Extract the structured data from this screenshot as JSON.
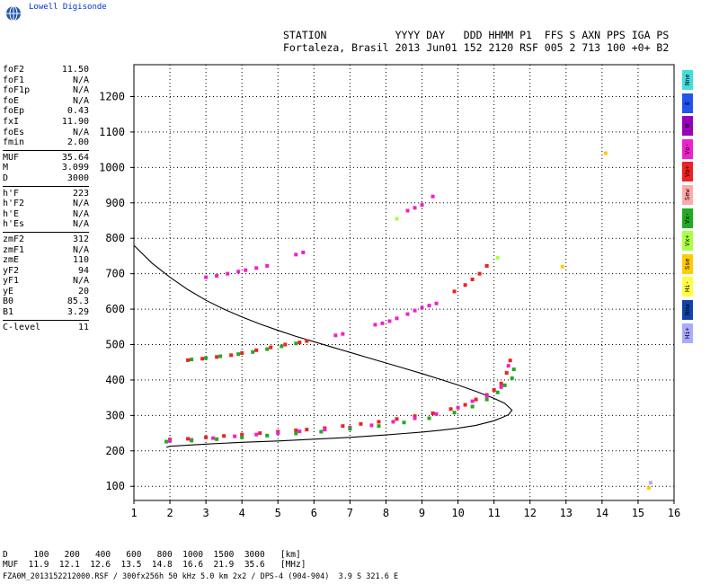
{
  "header": {
    "logo_text": "Lowell Digisonde",
    "line1": "STATION           YYYY DAY   DDD HHMM P1  FFS S AXN PPS IGA PS",
    "line2": "Fortaleza, Brasil 2013 Jun01 152 2120 RSF 005 2 713 100 +0+ B2"
  },
  "params": {
    "group1": [
      {
        "label": "foF2",
        "value": "11.50"
      },
      {
        "label": "foF1",
        "value": "N/A"
      },
      {
        "label": "foF1p",
        "value": "N/A"
      },
      {
        "label": "foE",
        "value": "N/A"
      },
      {
        "label": "foEp",
        "value": "0.43"
      },
      {
        "label": "fxI",
        "value": "11.90"
      },
      {
        "label": "foEs",
        "value": "N/A"
      },
      {
        "label": "fmin",
        "value": "2.00"
      }
    ],
    "group2": [
      {
        "label": "MUF",
        "value": "35.64"
      },
      {
        "label": "M",
        "value": "3.099"
      },
      {
        "label": "D",
        "value": "3000"
      }
    ],
    "group3": [
      {
        "label": "h'F",
        "value": "223"
      },
      {
        "label": "h'F2",
        "value": "N/A"
      },
      {
        "label": "h'E",
        "value": "N/A"
      },
      {
        "label": "h'Es",
        "value": "N/A"
      }
    ],
    "group4": [
      {
        "label": "zmF2",
        "value": "312"
      },
      {
        "label": "zmF1",
        "value": "N/A"
      },
      {
        "label": "zmE",
        "value": "110"
      },
      {
        "label": "yF2",
        "value": "94"
      },
      {
        "label": "yF1",
        "value": "N/A"
      },
      {
        "label": "yE",
        "value": "20"
      },
      {
        "label": "B0",
        "value": "85.3"
      },
      {
        "label": "B1",
        "value": "3.29"
      }
    ],
    "group5": [
      {
        "label": "C-level",
        "value": "11"
      }
    ]
  },
  "legend": [
    {
      "label": "Nne",
      "color": "#44dddd"
    },
    {
      "label": "E",
      "color": "#2255ee"
    },
    {
      "label": "W",
      "color": "#9900bb"
    },
    {
      "label": "Vo-",
      "color": "#ee22cc"
    },
    {
      "label": "Vo+",
      "color": "#ee2222"
    },
    {
      "label": "Sew",
      "color": "#ffaaaa"
    },
    {
      "label": "Vx-",
      "color": "#22aa22"
    },
    {
      "label": "Vx+",
      "color": "#aaff44"
    },
    {
      "label": "Sse",
      "color": "#ffcc00"
    },
    {
      "label": "Hi-",
      "color": "#ffff44"
    },
    {
      "label": "Nnw",
      "color": "#1144aa"
    },
    {
      "label": "Hi+",
      "color": "#aaaaff"
    }
  ],
  "bottom": {
    "d_line": "D     100   200   400   600   800  1000  1500  3000   [km]",
    "muf_line": "MUF  11.9  12.1  12.6  13.5  14.8  16.6  21.9  35.6   [MHz]",
    "footer": "FZA0M_2013152212000.RSF / 300fx256h 50 kHz 5.0 km 2x2 / DPS-4 (904-904)  3.9 S 321.6 E"
  },
  "chart_data": {
    "type": "scatter",
    "xlim": [
      1,
      16
    ],
    "ylim": [
      60,
      1290
    ],
    "x_ticks": [
      1,
      2,
      3,
      4,
      5,
      6,
      7,
      8,
      9,
      10,
      11,
      12,
      13,
      14,
      15,
      16
    ],
    "y_ticks": [
      100,
      200,
      300,
      400,
      500,
      600,
      700,
      800,
      900,
      1000,
      1100,
      1200
    ],
    "grid": true,
    "profile": {
      "x": [
        1.0,
        1.5,
        2.0,
        2.5,
        3.0,
        3.5,
        4.0,
        4.5,
        5.0,
        5.5,
        6.0,
        6.5,
        7.0,
        7.5,
        8.0,
        8.5,
        9.0,
        9.5,
        10.0,
        10.5,
        11.0,
        11.3,
        11.5,
        11.4,
        11.2,
        11.0,
        10.5,
        10.0,
        9.5,
        9.0,
        8.5,
        8.0,
        7.0,
        6.0,
        5.0,
        4.0,
        3.0,
        2.0,
        1.9
      ],
      "y": [
        780,
        730,
        690,
        655,
        625,
        600,
        578,
        558,
        540,
        523,
        508,
        493,
        478,
        463,
        448,
        433,
        418,
        402,
        386,
        368,
        348,
        334,
        315,
        302,
        293,
        285,
        272,
        264,
        258,
        253,
        249,
        245,
        238,
        233,
        228,
        224,
        219,
        213,
        210
      ]
    },
    "traces": [
      {
        "name": "Vo+",
        "color": "#ee2222",
        "x": [
          2.0,
          2.5,
          3.0,
          3.5,
          4.0,
          4.5,
          5.0,
          5.5,
          5.8,
          6.3,
          6.8,
          7.3,
          7.8,
          8.3,
          8.8,
          9.3,
          9.8,
          10.2,
          10.5,
          10.8,
          11.0,
          11.2,
          11.35,
          11.45
        ],
        "y": [
          232,
          234,
          238,
          242,
          246,
          250,
          254,
          258,
          260,
          264,
          270,
          276,
          282,
          290,
          298,
          306,
          318,
          330,
          345,
          358,
          372,
          390,
          420,
          455
        ]
      },
      {
        "name": "Vo-",
        "color": "#ee22cc",
        "x": [
          2.0,
          2.6,
          3.2,
          3.8,
          4.4,
          5.0,
          5.6,
          6.3,
          7.0,
          7.6,
          8.2,
          8.8,
          9.4,
          10.0,
          10.4,
          10.8,
          11.2,
          11.4
        ],
        "y": [
          228,
          231,
          236,
          241,
          246,
          250,
          255,
          260,
          266,
          272,
          282,
          292,
          304,
          322,
          340,
          355,
          380,
          440
        ]
      },
      {
        "name": "Vx-",
        "color": "#22aa22",
        "x": [
          1.9,
          2.6,
          3.3,
          4.0,
          4.7,
          5.5,
          6.2,
          7.0,
          7.8,
          8.5,
          9.2,
          9.9,
          10.4,
          10.8,
          11.1,
          11.3,
          11.5,
          11.55
        ],
        "y": [
          226,
          229,
          233,
          238,
          243,
          249,
          254,
          262,
          270,
          280,
          292,
          308,
          325,
          345,
          365,
          385,
          405,
          430
        ]
      },
      {
        "name": "Vo+",
        "color": "#ee2222",
        "x": [
          2.5,
          2.9,
          3.3,
          3.7,
          4.0,
          4.4,
          4.8,
          5.2,
          5.6,
          5.8
        ],
        "y": [
          456,
          460,
          465,
          470,
          476,
          484,
          492,
          500,
          506,
          510
        ]
      },
      {
        "name": "Vx-",
        "color": "#22aa22",
        "x": [
          2.6,
          3.0,
          3.4,
          3.9,
          4.3,
          4.7,
          5.1,
          5.5
        ],
        "y": [
          458,
          462,
          467,
          473,
          479,
          487,
          495,
          503
        ]
      },
      {
        "name": "Vo-",
        "color": "#ee22cc",
        "x": [
          6.6,
          6.8,
          7.7,
          7.9,
          8.1,
          8.3,
          8.6,
          8.8,
          9.0,
          9.2,
          9.4
        ],
        "y": [
          526,
          530,
          556,
          560,
          566,
          574,
          586,
          596,
          604,
          610,
          616
        ]
      },
      {
        "name": "Vo+",
        "color": "#ee2222",
        "x": [
          9.9,
          10.2,
          10.4,
          10.6,
          10.8
        ],
        "y": [
          650,
          668,
          684,
          700,
          722
        ]
      },
      {
        "name": "Vo-",
        "color": "#ee22cc",
        "x": [
          3.0,
          3.3,
          3.6,
          3.9,
          4.1,
          4.4,
          4.7,
          5.5,
          5.7
        ],
        "y": [
          690,
          694,
          700,
          706,
          710,
          716,
          722,
          754,
          760
        ]
      },
      {
        "name": "Vo-",
        "color": "#ee22cc",
        "x": [
          8.6,
          8.8,
          9.0,
          9.3
        ],
        "y": [
          878,
          886,
          894,
          918
        ]
      },
      {
        "name": "Vx+",
        "color": "#aaff44",
        "x": [
          8.3,
          11.1
        ],
        "y": [
          855,
          745
        ]
      },
      {
        "name": "Sse",
        "color": "#ffcc00",
        "x": [
          12.9,
          14.1,
          15.3
        ],
        "y": [
          720,
          1040,
          95
        ]
      },
      {
        "name": "Hi+",
        "color": "#aaaaff",
        "x": [
          15.35
        ],
        "y": [
          110
        ]
      }
    ]
  }
}
